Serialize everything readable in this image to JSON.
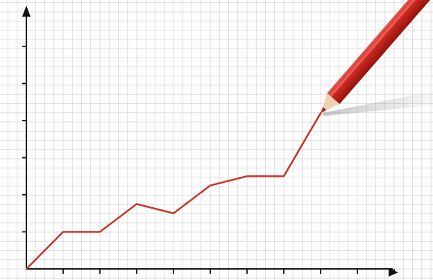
{
  "chart_data": {
    "type": "line",
    "title": "",
    "xlabel": "",
    "ylabel": "",
    "x": [
      0,
      1,
      2,
      3,
      4,
      5,
      6,
      7,
      8,
      9
    ],
    "series": [
      {
        "values": [
          0.0,
          1.0,
          1.0,
          1.75,
          1.5,
          2.25,
          2.5,
          2.5,
          4.2,
          null
        ]
      }
    ],
    "xlim": [
      0,
      10
    ],
    "ylim": [
      0,
      7
    ],
    "x_ticks": [
      1,
      2,
      3,
      4,
      5,
      6,
      7,
      8,
      9,
      10
    ],
    "y_ticks": [
      1,
      2,
      3,
      4,
      5,
      6
    ],
    "tick_labels_shown": false,
    "grid": true,
    "legend": "none"
  },
  "colors": {
    "line": "#c9352b",
    "grid": "#d6d6d6",
    "axis": "#111111",
    "pencil_body": "#c8241c",
    "pencil_wood": "#efd2b4",
    "pencil_lead": "#b3201a"
  },
  "decoration": {
    "pencil_icon": "red-pencil-icon"
  }
}
